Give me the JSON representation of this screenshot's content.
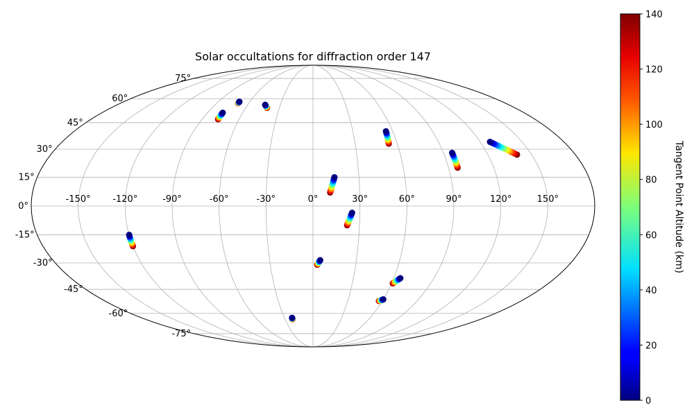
{
  "chart_data": {
    "type": "scatter",
    "projection": "mollweide",
    "title": "Solar occultations for diffraction order 147",
    "lon_ticks": [
      "-150°",
      "-120°",
      "-90°",
      "-60°",
      "-30°",
      "0°",
      "30°",
      "60°",
      "90°",
      "120°",
      "150°"
    ],
    "lon_tick_values": [
      -150,
      -120,
      -90,
      -60,
      -30,
      0,
      30,
      60,
      90,
      120,
      150
    ],
    "lat_ticks": [
      "-75°",
      "-60°",
      "-45°",
      "-30°",
      "-15°",
      "0°",
      "15°",
      "30°",
      "45°",
      "60°",
      "75°"
    ],
    "lat_tick_values": [
      -75,
      -60,
      -45,
      -30,
      -15,
      0,
      15,
      30,
      45,
      60,
      75
    ],
    "grid": true,
    "colorbar": {
      "label": "Tangent Point Altitude (km)",
      "range": [
        0,
        140
      ],
      "ticks": [
        "0",
        "20",
        "40",
        "60",
        "80",
        "100",
        "120",
        "140"
      ],
      "tick_values": [
        0,
        20,
        40,
        60,
        80,
        100,
        120,
        140
      ],
      "colormap": "jet",
      "position": "right"
    },
    "occultations": [
      {
        "lon0": -120,
        "lat0": -15,
        "lon1": -120,
        "lat1": -21
      },
      {
        "lon0": -77,
        "lat0": 51,
        "lon1": -77,
        "lat1": 47
      },
      {
        "lon0": -70,
        "lat0": 58,
        "lon1": -70,
        "lat1": 57
      },
      {
        "lon0": -44,
        "lat0": 56,
        "lon1": -41,
        "lat1": 54
      },
      {
        "lon0": -22,
        "lat0": -63,
        "lon1": -22,
        "lat1": -64
      },
      {
        "lon0": 5,
        "lat0": -28.5,
        "lon1": 3,
        "lat1": -31
      },
      {
        "lon0": 14,
        "lat0": 15,
        "lon1": 11,
        "lat1": 7
      },
      {
        "lon0": 25,
        "lat0": -3.5,
        "lon1": 22,
        "lat1": -10
      },
      {
        "lon0": 55,
        "lat0": 40,
        "lon1": 54,
        "lat1": 33
      },
      {
        "lon0": 60,
        "lat0": -51,
        "lon1": 57,
        "lat1": -52
      },
      {
        "lon0": 65,
        "lat0": -38.5,
        "lon1": 61,
        "lat1": -41.5
      },
      {
        "lon0": 96,
        "lat0": 28,
        "lon1": 96,
        "lat1": 20
      },
      {
        "lon0": 127,
        "lat0": 34,
        "lon1": 140,
        "lat1": 27
      }
    ]
  }
}
